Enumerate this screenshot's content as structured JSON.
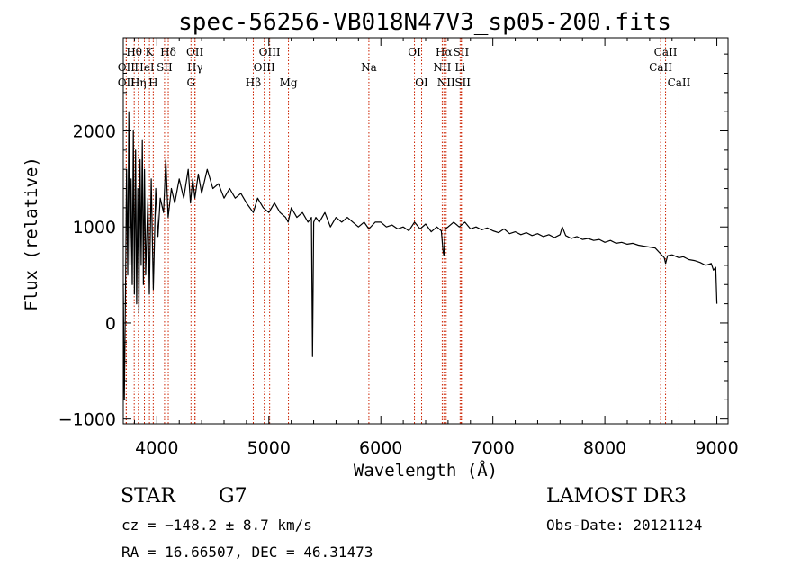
{
  "chart_data": {
    "type": "line",
    "title": "spec-56256-VB018N47V3_sp05-200.fits",
    "xlabel": "Wavelength (Å)",
    "ylabel": "Flux (relative)",
    "xlim": [
      3700,
      9100
    ],
    "ylim": [
      -1050,
      2970
    ],
    "xticks": [
      4000,
      5000,
      6000,
      7000,
      8000,
      9000
    ],
    "yticks": [
      -1000,
      0,
      1000,
      2000
    ],
    "series": [
      {
        "name": "flux",
        "x": [
          3700,
          3710,
          3720,
          3730,
          3740,
          3750,
          3760,
          3770,
          3780,
          3790,
          3800,
          3810,
          3820,
          3830,
          3840,
          3850,
          3860,
          3870,
          3880,
          3890,
          3900,
          3920,
          3933,
          3950,
          3968,
          3990,
          4010,
          4030,
          4060,
          4080,
          4101,
          4130,
          4160,
          4200,
          4240,
          4280,
          4300,
          4320,
          4340,
          4370,
          4400,
          4450,
          4500,
          4550,
          4600,
          4650,
          4700,
          4750,
          4800,
          4861,
          4900,
          4950,
          5000,
          5050,
          5100,
          5150,
          5172,
          5200,
          5250,
          5300,
          5350,
          5380,
          5390,
          5400,
          5420,
          5450,
          5500,
          5550,
          5600,
          5650,
          5700,
          5750,
          5800,
          5850,
          5893,
          5950,
          6000,
          6050,
          6100,
          6150,
          6200,
          6250,
          6300,
          6350,
          6400,
          6450,
          6500,
          6540,
          6555,
          6563,
          6575,
          6600,
          6650,
          6700,
          6750,
          6800,
          6850,
          6900,
          6950,
          7000,
          7050,
          7100,
          7150,
          7200,
          7250,
          7300,
          7350,
          7400,
          7450,
          7500,
          7550,
          7600,
          7620,
          7650,
          7700,
          7750,
          7800,
          7850,
          7900,
          7950,
          8000,
          8050,
          8100,
          8150,
          8200,
          8250,
          8300,
          8350,
          8400,
          8450,
          8498,
          8530,
          8542,
          8560,
          8600,
          8662,
          8700,
          8750,
          8800,
          8850,
          8900,
          8950,
          8970,
          8990,
          9000
        ],
        "y": [
          400,
          -800,
          300,
          1600,
          500,
          2200,
          600,
          1500,
          400,
          2000,
          300,
          1800,
          200,
          1400,
          100,
          1700,
          600,
          1900,
          400,
          1600,
          500,
          1300,
          300,
          1500,
          350,
          1400,
          900,
          1300,
          1150,
          1700,
          1100,
          1400,
          1250,
          1500,
          1300,
          1600,
          1250,
          1500,
          1300,
          1550,
          1350,
          1600,
          1400,
          1450,
          1300,
          1400,
          1300,
          1350,
          1250,
          1150,
          1300,
          1200,
          1150,
          1250,
          1150,
          1100,
          1050,
          1200,
          1100,
          1150,
          1050,
          1100,
          -350,
          1050,
          1100,
          1050,
          1150,
          1000,
          1100,
          1050,
          1100,
          1050,
          1000,
          1050,
          980,
          1050,
          1050,
          1000,
          1020,
          980,
          1000,
          960,
          1050,
          980,
          1030,
          950,
          1000,
          960,
          750,
          700,
          980,
          1000,
          1050,
          1000,
          1050,
          980,
          1000,
          970,
          990,
          960,
          940,
          980,
          930,
          950,
          920,
          940,
          910,
          930,
          900,
          920,
          890,
          920,
          1000,
          910,
          880,
          900,
          870,
          880,
          860,
          870,
          840,
          860,
          830,
          840,
          820,
          830,
          810,
          800,
          790,
          780,
          720,
          680,
          620,
          700,
          710,
          680,
          690,
          660,
          650,
          630,
          600,
          620,
          550,
          580,
          200
        ]
      }
    ],
    "line_markers": [
      {
        "label": "Hθ",
        "x": 3798,
        "row": 0
      },
      {
        "label": "K",
        "x": 3934,
        "row": 0
      },
      {
        "label": "Hδ",
        "x": 4102,
        "row": 0
      },
      {
        "label": "OII",
        "x": 4340,
        "row": 0
      },
      {
        "label": "OIII",
        "x": 5007,
        "row": 0
      },
      {
        "label": "OI",
        "x": 6300,
        "row": 0
      },
      {
        "label": "Hα",
        "x": 6563,
        "row": 0
      },
      {
        "label": "SII",
        "x": 6717,
        "row": 0
      },
      {
        "label": "CaII",
        "x": 8542,
        "row": 0
      },
      {
        "label": "OII",
        "x": 3727,
        "row": 1
      },
      {
        "label": "HeI",
        "x": 3889,
        "row": 1
      },
      {
        "label": "SII",
        "x": 4069,
        "row": 1
      },
      {
        "label": "Hγ",
        "x": 4341,
        "row": 1
      },
      {
        "label": "OIII",
        "x": 4959,
        "row": 1
      },
      {
        "label": "Na",
        "x": 5893,
        "row": 1
      },
      {
        "label": "NII",
        "x": 6548,
        "row": 1
      },
      {
        "label": "Li",
        "x": 6708,
        "row": 1
      },
      {
        "label": "CaII",
        "x": 8498,
        "row": 1
      },
      {
        "label": "OII",
        "x": 3727,
        "row": 2
      },
      {
        "label": "Hη",
        "x": 3835,
        "row": 2
      },
      {
        "label": "H",
        "x": 3968,
        "row": 2
      },
      {
        "label": "G",
        "x": 4305,
        "row": 2
      },
      {
        "label": "Hβ",
        "x": 4861,
        "row": 2
      },
      {
        "label": "Mg",
        "x": 5175,
        "row": 2
      },
      {
        "label": "OI",
        "x": 6364,
        "row": 2
      },
      {
        "label": "NII",
        "x": 6583,
        "row": 2
      },
      {
        "label": "SII",
        "x": 6731,
        "row": 2
      },
      {
        "label": "CaII",
        "x": 8662,
        "row": 2
      }
    ]
  },
  "info": {
    "object_type": "STAR",
    "subclass": "G7",
    "survey": "LAMOST DR3",
    "cz": "cz = −148.2 ± 8.7 km/s",
    "obs_date": "Obs-Date: 20121124",
    "coords": "RA =  16.66507, DEC =  46.31473"
  }
}
